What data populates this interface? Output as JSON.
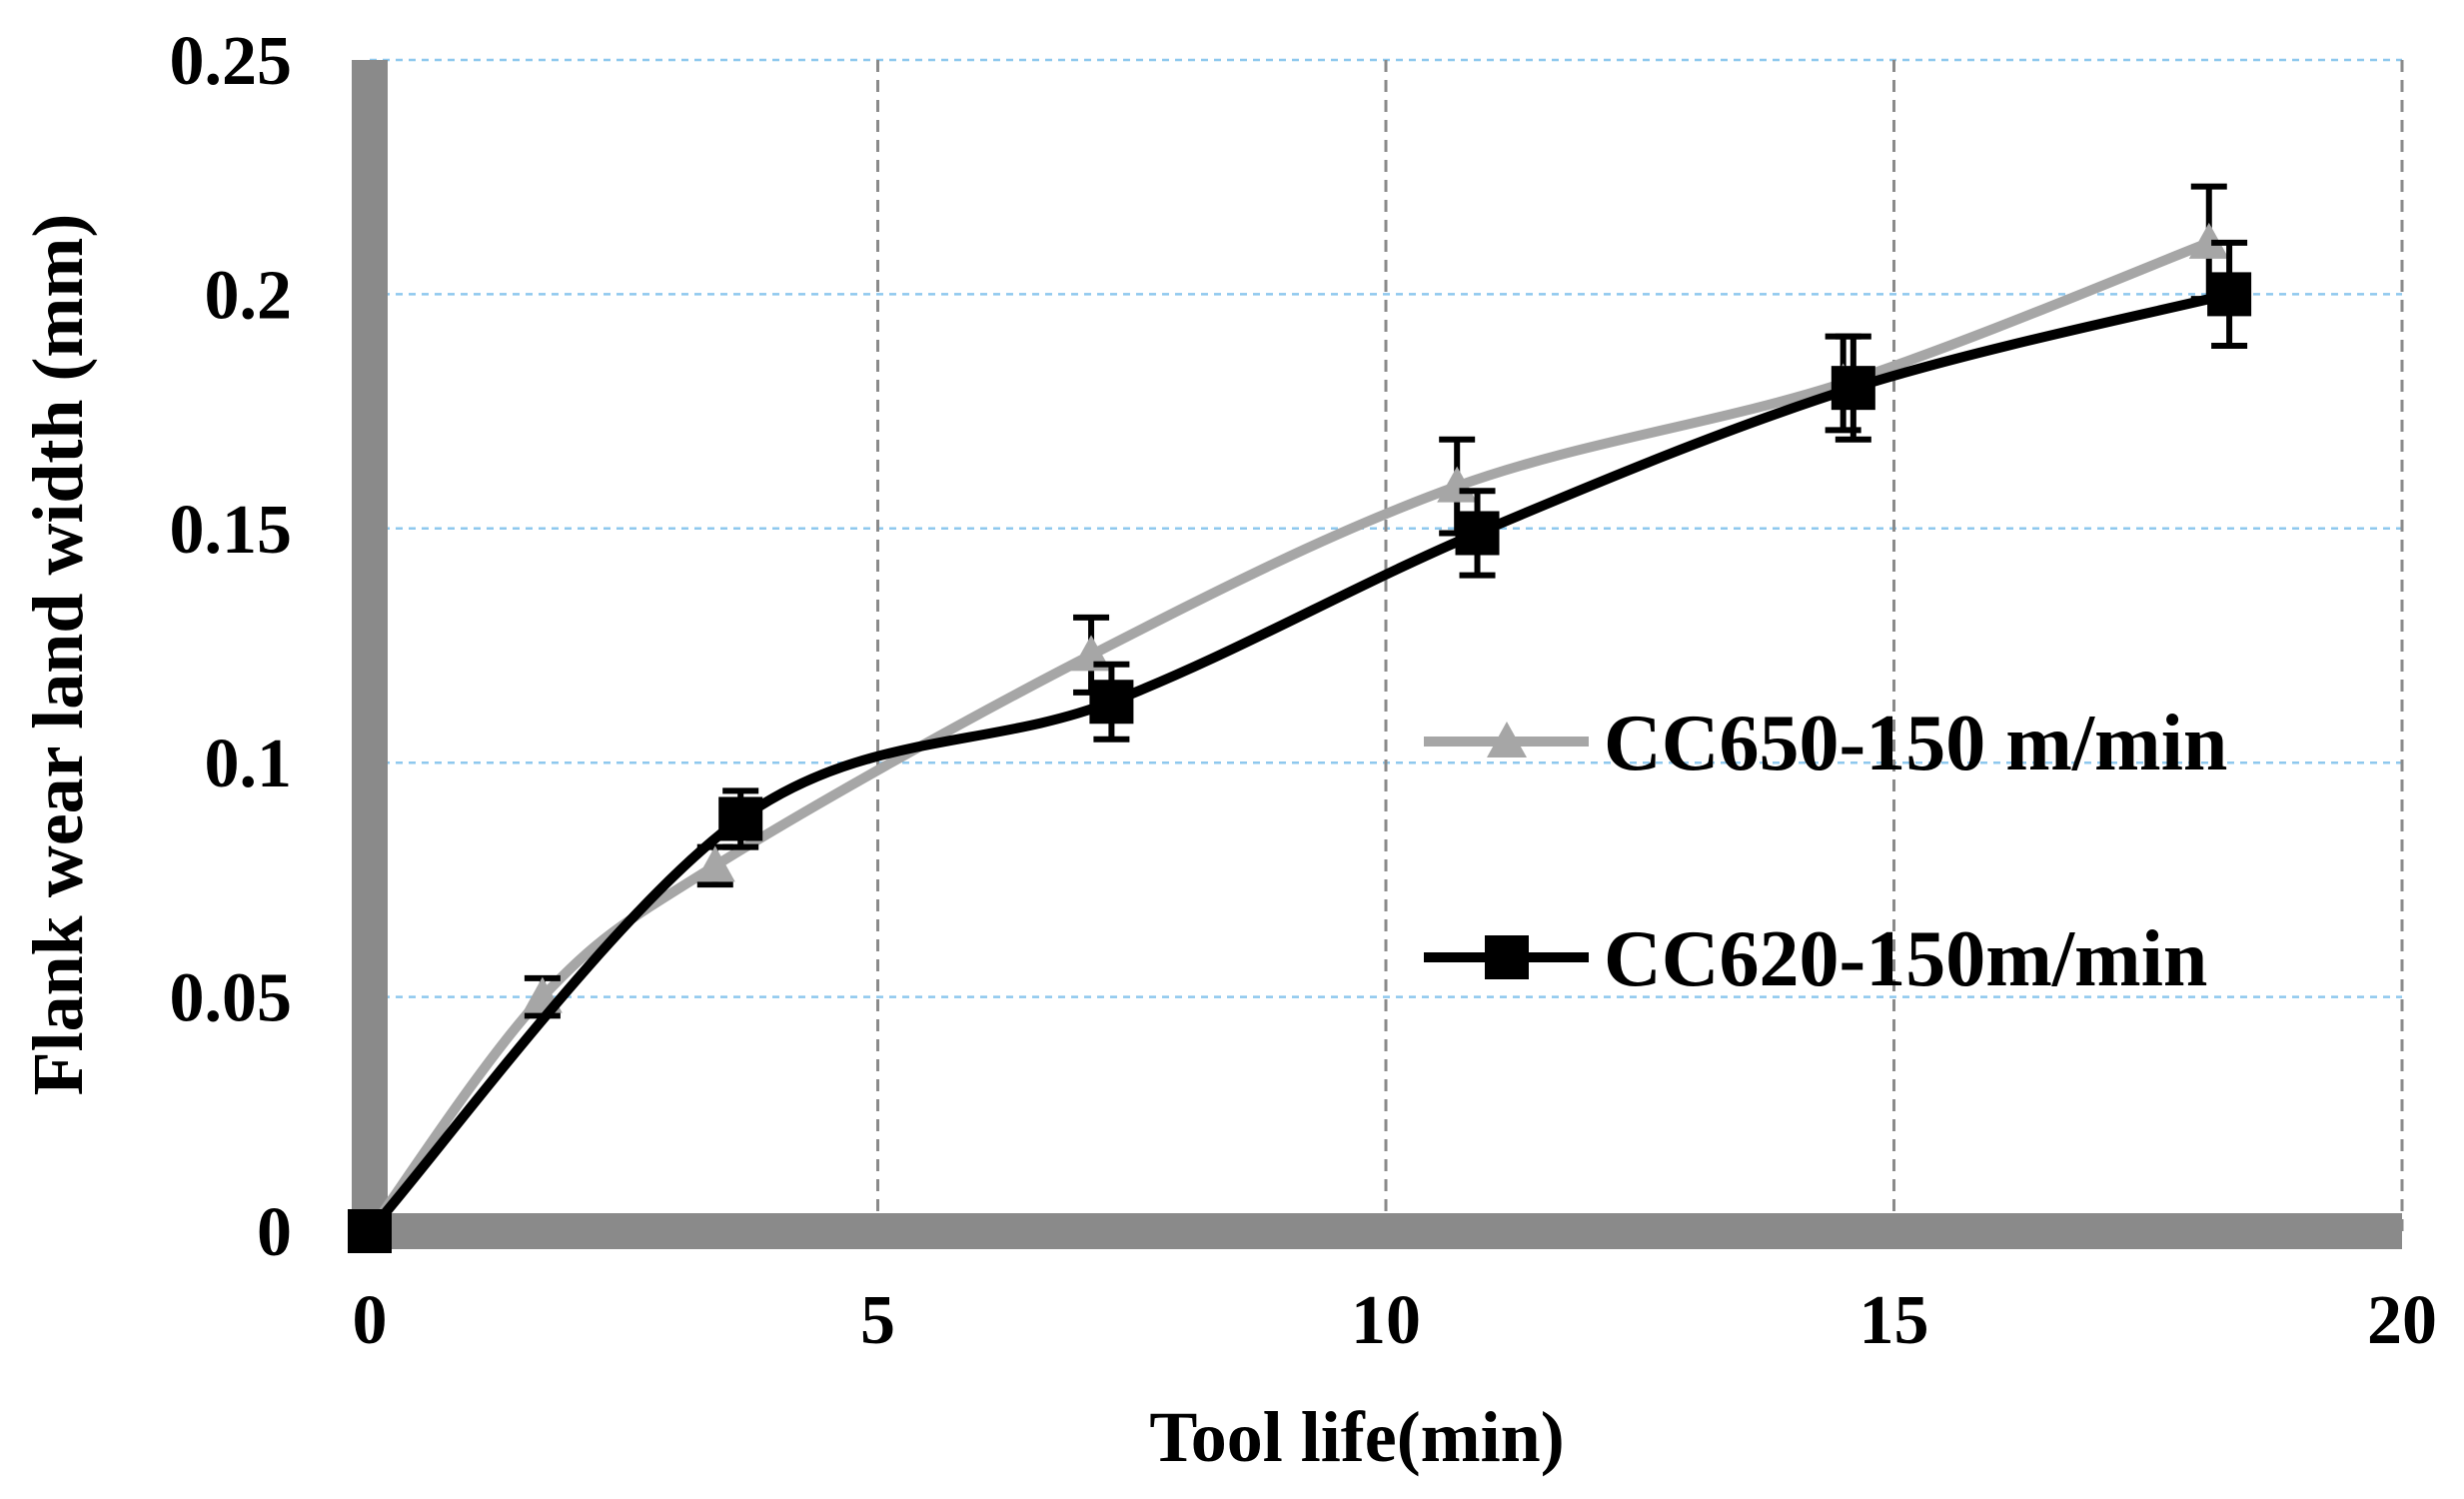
{
  "chart_data": {
    "type": "line",
    "xlabel": "Tool life(min)",
    "ylabel": "Flank wear land width (mm)",
    "xlim": [
      0,
      20
    ],
    "ylim": [
      0,
      0.25
    ],
    "x_ticks": [
      "0",
      "5",
      "10",
      "15",
      "20"
    ],
    "y_ticks": [
      "0",
      "0.05",
      "0.1",
      "0.15",
      "0.2",
      "0.25"
    ],
    "grid": "on (dashed)",
    "legend_position": "center-right",
    "series": [
      {
        "name": "CC650-150 m/min",
        "color": "#a6a6a6",
        "marker": "triangle",
        "x": [
          0,
          1.7,
          3.4,
          7.1,
          10.7,
          14.5,
          18.1
        ],
        "y": [
          0,
          0.05,
          0.078,
          0.123,
          0.159,
          0.181,
          0.211
        ],
        "error": [
          0,
          0.004,
          0.004,
          0.008,
          0.01,
          0.01,
          0.012
        ]
      },
      {
        "name": "CC620-150m/min",
        "color": "#000000",
        "marker": "square",
        "x": [
          0,
          3.65,
          7.3,
          10.9,
          14.6,
          18.3
        ],
        "y": [
          0,
          0.088,
          0.113,
          0.149,
          0.18,
          0.2
        ],
        "error": [
          0,
          0.006,
          0.008,
          0.009,
          0.011,
          0.011
        ]
      }
    ]
  }
}
